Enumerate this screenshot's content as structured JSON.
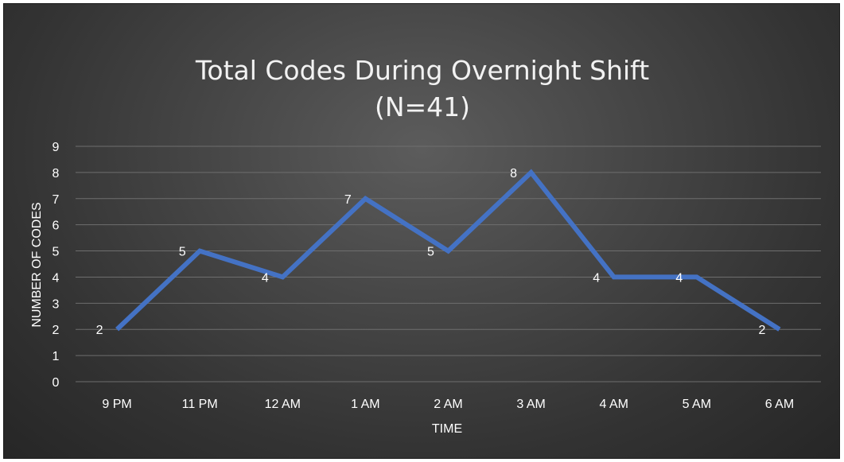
{
  "chart_data": {
    "type": "line",
    "title": [
      "Total Codes During Overnight Shift",
      "(N=41)"
    ],
    "xlabel": "TIME",
    "ylabel": "NUMBER OF CODES",
    "categories": [
      "9 PM",
      "11 PM",
      "12 AM",
      "1 AM",
      "2 AM",
      "3 AM",
      "4 AM",
      "5 AM",
      "6 AM"
    ],
    "series": [
      {
        "values": [
          2,
          5,
          4,
          7,
          5,
          8,
          4,
          4,
          2
        ]
      }
    ],
    "ylim": [
      0,
      9
    ],
    "yticks": [
      0,
      1,
      2,
      3,
      4,
      5,
      6,
      7,
      8,
      9
    ],
    "grid": true,
    "data_labels": true,
    "colors": {
      "line": "#4472c4",
      "text": "#ffffff",
      "grid": "#6e6e6e"
    }
  }
}
